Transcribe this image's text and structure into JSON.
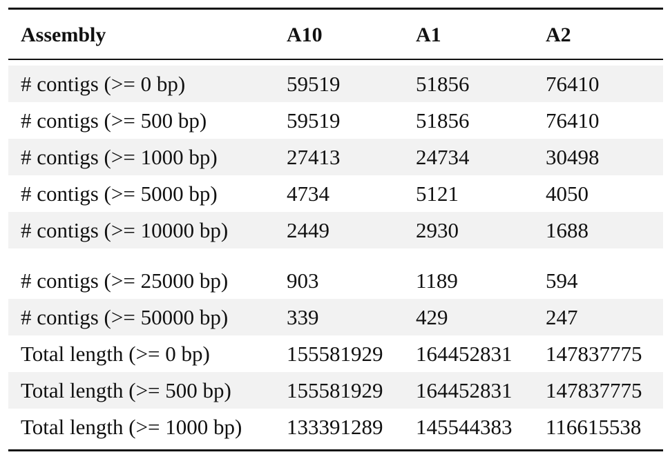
{
  "table": {
    "header": [
      "Assembly",
      "A10",
      "A1",
      "A2"
    ],
    "rows": [
      [
        "# contigs (>= 0 bp)",
        59519,
        51856,
        76410
      ],
      [
        "# contigs (>= 500 bp)",
        59519,
        51856,
        76410
      ],
      [
        "# contigs (>= 1000 bp)",
        27413,
        24734,
        30498
      ],
      [
        "# contigs (>= 5000 bp)",
        4734,
        5121,
        4050
      ],
      [
        "# contigs (>= 10000 bp)",
        2449,
        2930,
        1688
      ],
      [
        "# contigs (>= 25000 bp)",
        903,
        1189,
        594
      ],
      [
        "# contigs (>= 50000 bp)",
        339,
        429,
        247
      ],
      [
        "Total length (>= 0 bp)",
        155581929,
        164452831,
        147837775
      ],
      [
        "Total length (>= 500 bp)",
        155581929,
        164452831,
        147837775
      ],
      [
        "Total length (>= 1000 bp)",
        133391289,
        145544383,
        116615538
      ]
    ]
  }
}
